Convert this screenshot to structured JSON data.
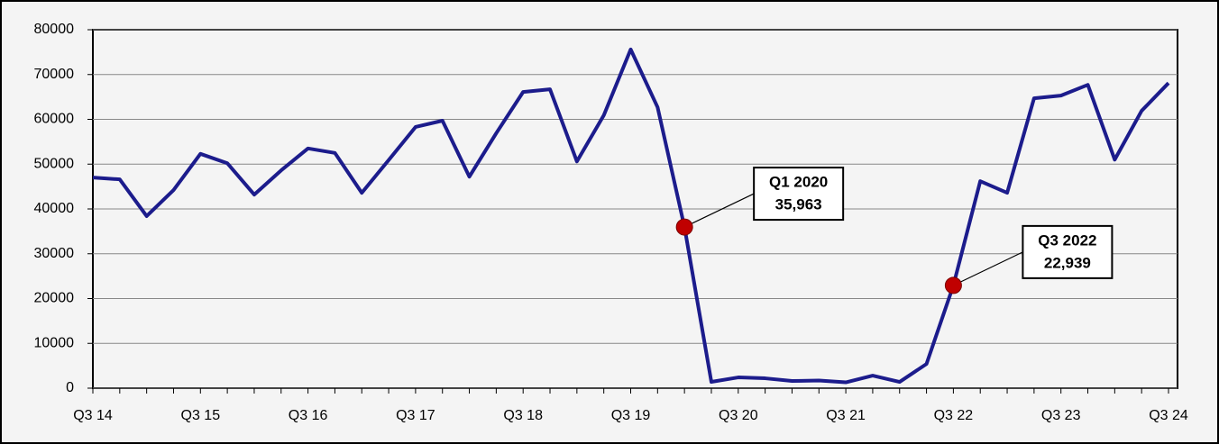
{
  "chart_data": {
    "type": "line",
    "categories": [
      "Q3 14",
      null,
      null,
      null,
      "Q3 15",
      null,
      null,
      null,
      "Q3 16",
      null,
      null,
      null,
      "Q3 17",
      null,
      null,
      null,
      "Q3 18",
      null,
      null,
      null,
      "Q3 19",
      null,
      null,
      null,
      "Q3 20",
      null,
      null,
      null,
      "Q3 21",
      null,
      null,
      null,
      "Q3 22",
      null,
      null,
      null,
      "Q3 23",
      null,
      null,
      null,
      "Q3 24"
    ],
    "series": [
      {
        "color": "#1c1c8c",
        "values": [
          47000,
          46600,
          38400,
          44200,
          52300,
          50200,
          43200,
          48600,
          53500,
          52500,
          43600,
          50900,
          58300,
          59700,
          47200,
          56900,
          66100,
          66700,
          50600,
          60900,
          75600,
          62700,
          35963,
          1400,
          2400,
          2200,
          1600,
          1700,
          1300,
          2800,
          1400,
          5400,
          22939,
          46200,
          43600,
          64700,
          65300,
          67700,
          51000,
          61900,
          68100
        ],
        "value_labels": [
          null,
          null,
          null,
          null,
          null,
          null,
          null,
          null,
          null,
          null,
          null,
          null,
          null,
          null,
          null,
          null,
          null,
          null,
          null,
          null,
          null,
          null,
          "35,963",
          null,
          null,
          null,
          null,
          null,
          null,
          null,
          null,
          null,
          "22,939",
          null,
          null,
          null,
          null,
          null,
          null,
          null,
          null
        ],
        "callouts": [
          null,
          null,
          null,
          null,
          null,
          null,
          null,
          null,
          null,
          null,
          null,
          null,
          null,
          null,
          null,
          null,
          null,
          null,
          null,
          null,
          null,
          null,
          "Q1 2020",
          null,
          null,
          null,
          null,
          null,
          null,
          null,
          null,
          null,
          "Q3 2022",
          null,
          null,
          null,
          null,
          null,
          null,
          null,
          null
        ],
        "highlight_color": "#c00000"
      }
    ],
    "ylim": [
      0,
      80000
    ],
    "yticks": [
      0,
      10000,
      20000,
      30000,
      40000,
      50000,
      60000,
      70000,
      80000
    ],
    "grid": true
  }
}
